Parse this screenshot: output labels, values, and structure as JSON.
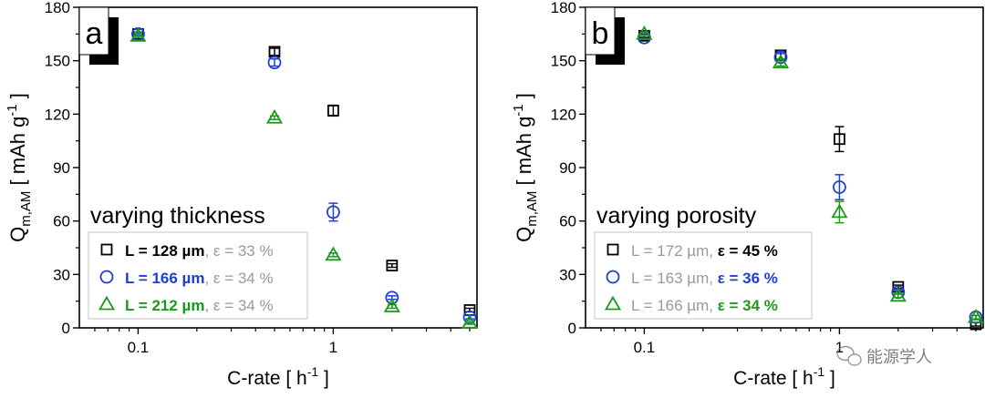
{
  "chart_data": [
    {
      "type": "scatter",
      "panel_label": "a",
      "title": "varying thickness",
      "xlabel": "C-rate [ h",
      "xlabel_sup": "-1",
      "xlabel_end": " ]",
      "ylabel": "Q",
      "ylabel_sub": "m,AM",
      "ylabel_mid": " [ mAh g",
      "ylabel_sup": "-1",
      "ylabel_end": " ]",
      "xscale": "log",
      "xlim": [
        0.05,
        5.45
      ],
      "ylim": [
        0,
        180
      ],
      "xticks": [
        0.1,
        1
      ],
      "xtick_labels": [
        "0.1",
        "1"
      ],
      "yticks": [
        0,
        30,
        60,
        90,
        120,
        150,
        180
      ],
      "ytick_labels": [
        "0",
        "30",
        "60",
        "90",
        "120",
        "150",
        "180"
      ],
      "legend_position": "bottom-left",
      "x": [
        0.1,
        0.5,
        1,
        2,
        5
      ],
      "series": [
        {
          "name": "L = 128 µm, ε = 33 %",
          "label_bold": "L = 128 µm",
          "label_rest": ", ε = 33 %",
          "marker": "square",
          "color": "#000000",
          "values": [
            165,
            155,
            122,
            35,
            10
          ],
          "errors": [
            1,
            2,
            3,
            1,
            1
          ]
        },
        {
          "name": "L = 166 µm, ε = 34 %",
          "label_bold": "L = 166 µm",
          "label_rest": ", ε = 34 %",
          "marker": "circle",
          "color": "#1f3fd0",
          "values": [
            165,
            149,
            65,
            17,
            6
          ],
          "errors": [
            1,
            2,
            5,
            1,
            1
          ]
        },
        {
          "name": "L = 212 µm, ε = 34 %",
          "label_bold": "L = 212 µm",
          "label_rest": ", ε = 34 %",
          "marker": "triangle",
          "color": "#1a9a1a",
          "values": [
            164,
            118,
            41,
            12,
            3
          ],
          "errors": [
            1,
            1,
            1,
            1,
            1
          ]
        }
      ]
    },
    {
      "type": "scatter",
      "panel_label": "b",
      "title": "varying porosity",
      "xlabel": "C-rate [ h",
      "xlabel_sup": "-1",
      "xlabel_end": " ]",
      "ylabel": "Q",
      "ylabel_sub": "m,AM",
      "ylabel_mid": " [ mAh g",
      "ylabel_sup": "-1",
      "ylabel_end": " ]",
      "xscale": "log",
      "xlim": [
        0.05,
        5.45
      ],
      "ylim": [
        0,
        180
      ],
      "xticks": [
        0.1,
        1
      ],
      "xtick_labels": [
        "0.1",
        "1"
      ],
      "yticks": [
        0,
        30,
        60,
        90,
        120,
        150,
        180
      ],
      "ytick_labels": [
        "0",
        "30",
        "60",
        "90",
        "120",
        "150",
        "180"
      ],
      "legend_position": "bottom-left",
      "x": [
        0.1,
        0.5,
        1,
        2,
        5
      ],
      "series": [
        {
          "name": "L = 172 µm, ε = 45 %",
          "label_rest": "L = 172 µm, ",
          "label_bold": "ε = 45 %",
          "marker": "square",
          "color": "#000000",
          "values": [
            164,
            153,
            106,
            23,
            2
          ],
          "errors": [
            1,
            2,
            7,
            1,
            1
          ]
        },
        {
          "name": "L = 163 µm, ε = 36 %",
          "label_rest": "L = 163 µm, ",
          "label_bold": "ε = 36 %",
          "marker": "circle",
          "color": "#1f3fd0",
          "values": [
            163,
            152,
            79,
            20,
            6
          ],
          "errors": [
            1,
            2,
            7,
            1,
            1
          ]
        },
        {
          "name": "L = 166 µm, ε = 34 %",
          "label_rest": "L = 166 µm, ",
          "label_bold": "ε = 34 %",
          "marker": "triangle",
          "color": "#1a9a1a",
          "values": [
            165,
            149,
            65,
            18,
            6
          ],
          "errors": [
            1,
            2,
            6,
            1,
            1
          ]
        }
      ]
    }
  ],
  "watermark": {
    "text": "能源学人",
    "icon": "wechat-icon"
  },
  "colors": {
    "legend_muted": "#9a9a9a",
    "legend_border": "#cfcfcf"
  }
}
